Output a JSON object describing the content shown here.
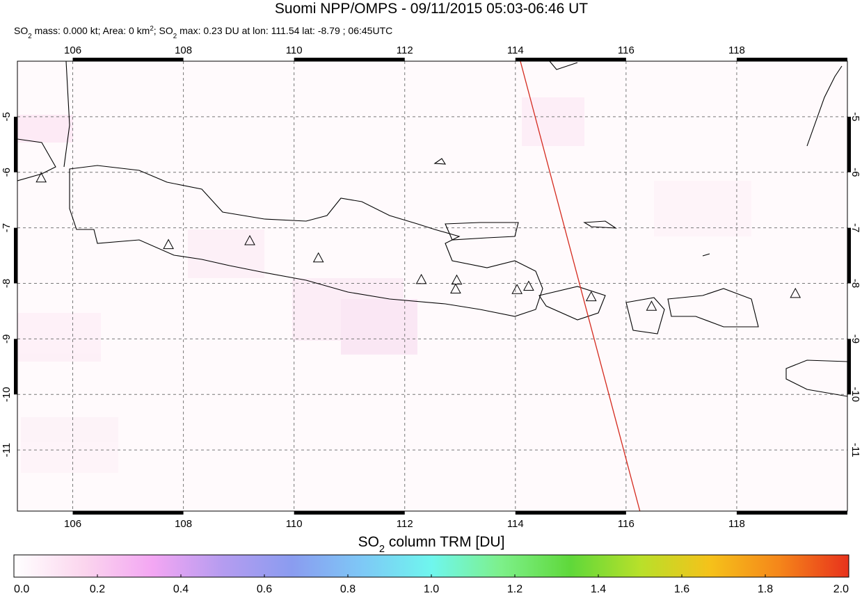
{
  "title": "Suomi NPP/OMPS - 09/11/2015 05:03-06:46 UT",
  "subtitle_parts": [
    "SO",
    "2",
    " mass: 0.000 kt; Area: 0 km",
    "2",
    "; SO",
    "2",
    " max: 0.23 DU at lon: 111.54 lat: -8.79 ; 06:45UTC"
  ],
  "map": {
    "lonlim": [
      105,
      120
    ],
    "latlim": [
      -12.1,
      -4
    ],
    "lonticks": [
      106,
      108,
      110,
      112,
      114,
      116,
      118
    ],
    "latticks": [
      -5,
      -6,
      -7,
      -8,
      -9,
      -10,
      -11
    ],
    "grid": true,
    "volcanoes": {
      "lon": [
        105.43,
        107.73,
        109.2,
        110.44,
        112.3,
        112.94,
        112.92,
        114.03,
        114.24,
        115.37,
        116.46,
        119.06
      ],
      "lat": [
        -6.1,
        -7.3,
        -7.23,
        -7.54,
        -7.93,
        -7.94,
        -8.1,
        -8.11,
        -8.05,
        -8.24,
        -8.41,
        -8.18
      ]
    },
    "orbit_edge": {
      "lon": [
        114.09,
        116.25
      ],
      "lat": [
        -4,
        -12.1
      ],
      "color": "#d42a1e"
    }
  },
  "colorbar": {
    "label_parts": [
      "SO",
      "2",
      " column TRM [DU]"
    ],
    "lim": [
      0,
      2
    ],
    "ticks": [
      {
        "value": 0,
        "label": "0.0"
      },
      {
        "value": 0.2,
        "label": "0.2"
      },
      {
        "value": 0.4,
        "label": "0.4"
      },
      {
        "value": 0.6,
        "label": "0.6"
      },
      {
        "value": 0.8,
        "label": "0.8"
      },
      {
        "value": 1,
        "label": "1.0"
      },
      {
        "value": 1.2,
        "label": "1.2"
      },
      {
        "value": 1.4,
        "label": "1.4"
      },
      {
        "value": 1.6,
        "label": "1.6"
      },
      {
        "value": 1.8,
        "label": "1.8"
      },
      {
        "value": 2,
        "label": "2.0"
      }
    ],
    "colors": [
      "#ffffff",
      "#fbd6ee",
      "#f3a6f3",
      "#b59cf0",
      "#8a9cf0",
      "#7ec8f6",
      "#6ff6ee",
      "#7df08a",
      "#5fd83a",
      "#b8e02a",
      "#f5c21a",
      "#f5861a",
      "#e8321c"
    ]
  }
}
